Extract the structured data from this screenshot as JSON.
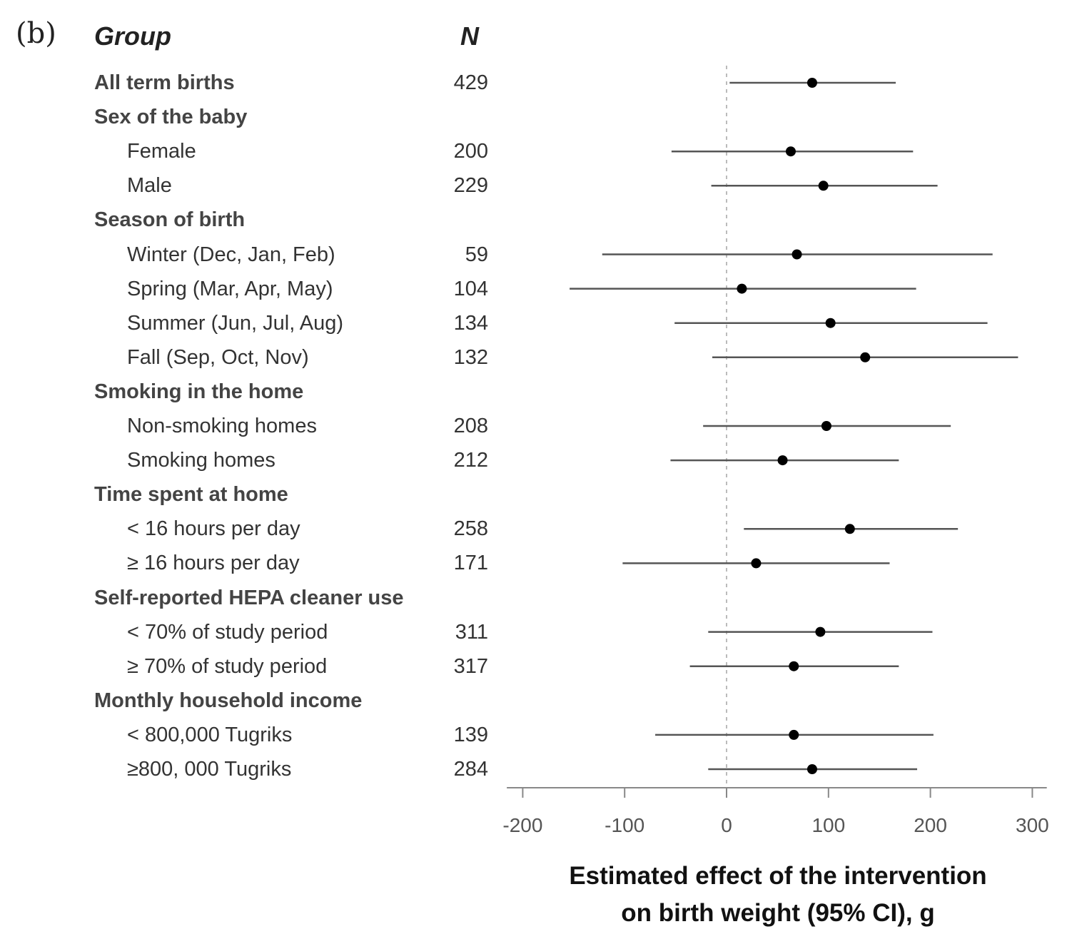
{
  "panel_label": "(b)",
  "headers": {
    "group": "Group",
    "n": "N"
  },
  "chart_data": {
    "type": "forest",
    "xlabel_line1": "Estimated effect of the intervention",
    "xlabel_line2": "on birth weight (95% CI), g",
    "xlim": [
      -210,
      310
    ],
    "xticks": [
      -200,
      -100,
      0,
      100,
      200,
      300
    ],
    "xtick_labels": [
      "-200",
      "-100",
      "0",
      "100",
      "200",
      "300"
    ],
    "reference_line": 0,
    "rows": [
      {
        "label": "All term births",
        "heading": true,
        "n": "429",
        "est": 84,
        "lo": 3,
        "hi": 166
      },
      {
        "label": "Sex of the baby",
        "heading": true,
        "n": ""
      },
      {
        "label": "Female",
        "heading": false,
        "n": "200",
        "est": 63,
        "lo": -54,
        "hi": 183
      },
      {
        "label": "Male",
        "heading": false,
        "n": "229",
        "est": 95,
        "lo": -15,
        "hi": 207
      },
      {
        "label": "Season of birth",
        "heading": true,
        "n": ""
      },
      {
        "label": "Winter (Dec, Jan, Feb)",
        "heading": false,
        "n": "59",
        "est": 69,
        "lo": -122,
        "hi": 261
      },
      {
        "label": "Spring (Mar, Apr, May)",
        "heading": false,
        "n": "104",
        "est": 15,
        "lo": -154,
        "hi": 186
      },
      {
        "label": "Summer (Jun, Jul, Aug)",
        "heading": false,
        "n": "134",
        "est": 102,
        "lo": -51,
        "hi": 256
      },
      {
        "label": "Fall (Sep, Oct, Nov)",
        "heading": false,
        "n": "132",
        "est": 136,
        "lo": -14,
        "hi": 286
      },
      {
        "label": "Smoking in the home",
        "heading": true,
        "n": ""
      },
      {
        "label": "Non-smoking homes",
        "heading": false,
        "n": "208",
        "est": 98,
        "lo": -23,
        "hi": 220
      },
      {
        "label": "Smoking homes",
        "heading": false,
        "n": "212",
        "est": 55,
        "lo": -55,
        "hi": 169
      },
      {
        "label": "Time spent at home",
        "heading": true,
        "n": ""
      },
      {
        "label": "< 16 hours per day",
        "heading": false,
        "n": "258",
        "est": 121,
        "lo": 17,
        "hi": 227
      },
      {
        "label": "≥ 16 hours per day",
        "heading": false,
        "n": "171",
        "est": 29,
        "lo": -102,
        "hi": 160
      },
      {
        "label": "Self-reported HEPA cleaner use",
        "heading": true,
        "n": ""
      },
      {
        "label": "< 70% of study period",
        "heading": false,
        "n": "311",
        "est": 92,
        "lo": -18,
        "hi": 202
      },
      {
        "label": "≥ 70% of study period",
        "heading": false,
        "n": "317",
        "est": 66,
        "lo": -36,
        "hi": 169
      },
      {
        "label": "Monthly household income",
        "heading": true,
        "n": ""
      },
      {
        "label": "< 800,000 Tugriks",
        "heading": false,
        "n": "139",
        "est": 66,
        "lo": -70,
        "hi": 203
      },
      {
        "label": "≥800, 000 Tugriks",
        "heading": false,
        "n": "284",
        "est": 84,
        "lo": -18,
        "hi": 187
      }
    ]
  }
}
